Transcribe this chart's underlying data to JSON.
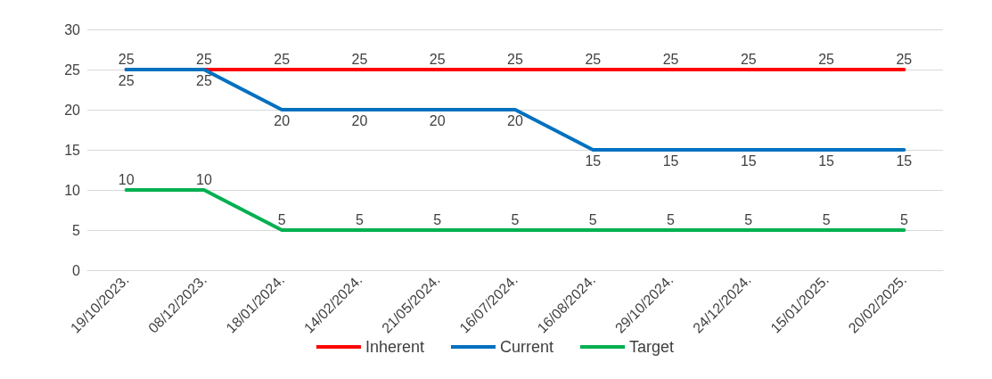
{
  "chart_data": {
    "type": "line",
    "categories": [
      "19/10/2023.",
      "08/12/2023.",
      "18/01/2024.",
      "14/02/2024.",
      "21/05/2024.",
      "16/07/2024.",
      "16/08/2024.",
      "29/10/2024.",
      "24/12/2024.",
      "15/01/2025.",
      "20/02/2025."
    ],
    "series": [
      {
        "name": "Inherent",
        "color": "#ff0000",
        "values": [
          25,
          25,
          25,
          25,
          25,
          25,
          25,
          25,
          25,
          25,
          25
        ]
      },
      {
        "name": "Current",
        "color": "#0070c0",
        "values": [
          25,
          25,
          20,
          20,
          20,
          20,
          15,
          15,
          15,
          15,
          15
        ]
      },
      {
        "name": "Target",
        "color": "#00b050",
        "values": [
          10,
          10,
          5,
          5,
          5,
          5,
          5,
          5,
          5,
          5,
          5
        ]
      }
    ],
    "ylim": [
      0,
      30
    ],
    "yticks": [
      0,
      5,
      10,
      15,
      20,
      25,
      30
    ],
    "grid": "y",
    "legend": "bottom",
    "data_labels": true
  }
}
